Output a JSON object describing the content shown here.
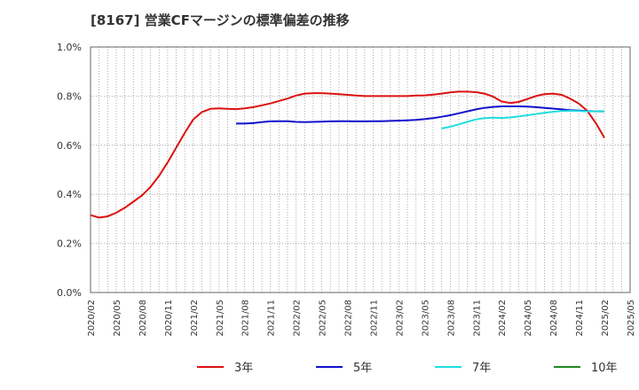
{
  "chart_data": {
    "type": "line",
    "title": "[8167]  営業CFマージンの標準偏差の推移",
    "xlabel": "",
    "ylabel": "",
    "ylim": [
      0,
      1.0
    ],
    "yticks": [
      "0.0%",
      "0.2%",
      "0.4%",
      "0.6%",
      "0.8%",
      "1.0%"
    ],
    "x_ticks": [
      "2020/02",
      "2020/05",
      "2020/08",
      "2020/11",
      "2021/02",
      "2021/05",
      "2021/08",
      "2021/11",
      "2022/02",
      "2022/05",
      "2022/08",
      "2022/11",
      "2023/02",
      "2023/05",
      "2023/08",
      "2023/11",
      "2024/02",
      "2024/05",
      "2024/08",
      "2024/11",
      "2025/02",
      "2025/05"
    ],
    "grid": true,
    "legend_position": "bottom",
    "series": [
      {
        "name": "3年",
        "color": "#dd1111",
        "points": [
          [
            "2020/02",
            0.315
          ],
          [
            "2020/03",
            0.305
          ],
          [
            "2020/04",
            0.31
          ],
          [
            "2020/05",
            0.325
          ],
          [
            "2020/06",
            0.345
          ],
          [
            "2020/07",
            0.37
          ],
          [
            "2020/08",
            0.395
          ],
          [
            "2020/09",
            0.43
          ],
          [
            "2020/10",
            0.475
          ],
          [
            "2020/11",
            0.53
          ],
          [
            "2020/12",
            0.59
          ],
          [
            "2021/01",
            0.65
          ],
          [
            "2021/02",
            0.705
          ],
          [
            "2021/03",
            0.735
          ],
          [
            "2021/04",
            0.748
          ],
          [
            "2021/05",
            0.75
          ],
          [
            "2021/06",
            0.748
          ],
          [
            "2021/07",
            0.747
          ],
          [
            "2021/08",
            0.75
          ],
          [
            "2021/09",
            0.755
          ],
          [
            "2021/10",
            0.762
          ],
          [
            "2021/11",
            0.77
          ],
          [
            "2021/12",
            0.78
          ],
          [
            "2022/01",
            0.79
          ],
          [
            "2022/02",
            0.802
          ],
          [
            "2022/03",
            0.81
          ],
          [
            "2022/04",
            0.812
          ],
          [
            "2022/05",
            0.812
          ],
          [
            "2022/06",
            0.81
          ],
          [
            "2022/07",
            0.808
          ],
          [
            "2022/08",
            0.805
          ],
          [
            "2022/09",
            0.802
          ],
          [
            "2022/10",
            0.8
          ],
          [
            "2022/11",
            0.8
          ],
          [
            "2022/12",
            0.8
          ],
          [
            "2023/01",
            0.8
          ],
          [
            "2023/02",
            0.8
          ],
          [
            "2023/03",
            0.8
          ],
          [
            "2023/04",
            0.802
          ],
          [
            "2023/05",
            0.803
          ],
          [
            "2023/06",
            0.806
          ],
          [
            "2023/07",
            0.81
          ],
          [
            "2023/08",
            0.815
          ],
          [
            "2023/09",
            0.818
          ],
          [
            "2023/10",
            0.818
          ],
          [
            "2023/11",
            0.816
          ],
          [
            "2023/12",
            0.81
          ],
          [
            "2024/01",
            0.798
          ],
          [
            "2024/02",
            0.778
          ],
          [
            "2024/03",
            0.772
          ],
          [
            "2024/04",
            0.776
          ],
          [
            "2024/05",
            0.788
          ],
          [
            "2024/06",
            0.8
          ],
          [
            "2024/07",
            0.808
          ],
          [
            "2024/08",
            0.81
          ],
          [
            "2024/09",
            0.805
          ],
          [
            "2024/10",
            0.79
          ],
          [
            "2024/11",
            0.77
          ],
          [
            "2024/12",
            0.74
          ],
          [
            "2025/01",
            0.69
          ],
          [
            "2025/02",
            0.63
          ]
        ]
      },
      {
        "name": "5年",
        "color": "#1111cc",
        "points": [
          [
            "2021/07",
            0.688
          ],
          [
            "2021/08",
            0.688
          ],
          [
            "2021/09",
            0.69
          ],
          [
            "2021/10",
            0.694
          ],
          [
            "2021/11",
            0.697
          ],
          [
            "2021/12",
            0.698
          ],
          [
            "2022/01",
            0.698
          ],
          [
            "2022/02",
            0.695
          ],
          [
            "2022/03",
            0.694
          ],
          [
            "2022/04",
            0.695
          ],
          [
            "2022/05",
            0.696
          ],
          [
            "2022/06",
            0.697
          ],
          [
            "2022/07",
            0.698
          ],
          [
            "2022/08",
            0.698
          ],
          [
            "2022/09",
            0.697
          ],
          [
            "2022/10",
            0.697
          ],
          [
            "2022/11",
            0.698
          ],
          [
            "2022/12",
            0.698
          ],
          [
            "2023/01",
            0.699
          ],
          [
            "2023/02",
            0.7
          ],
          [
            "2023/03",
            0.701
          ],
          [
            "2023/04",
            0.703
          ],
          [
            "2023/05",
            0.706
          ],
          [
            "2023/06",
            0.71
          ],
          [
            "2023/07",
            0.716
          ],
          [
            "2023/08",
            0.722
          ],
          [
            "2023/09",
            0.73
          ],
          [
            "2023/10",
            0.738
          ],
          [
            "2023/11",
            0.746
          ],
          [
            "2023/12",
            0.752
          ],
          [
            "2024/01",
            0.756
          ],
          [
            "2024/02",
            0.758
          ],
          [
            "2024/03",
            0.758
          ],
          [
            "2024/04",
            0.758
          ],
          [
            "2024/05",
            0.757
          ],
          [
            "2024/06",
            0.755
          ],
          [
            "2024/07",
            0.752
          ],
          [
            "2024/08",
            0.749
          ],
          [
            "2024/09",
            0.746
          ],
          [
            "2024/10",
            0.743
          ],
          [
            "2024/11",
            0.741
          ],
          [
            "2024/12",
            0.739
          ],
          [
            "2025/01",
            0.738
          ],
          [
            "2025/02",
            0.738
          ]
        ]
      },
      {
        "name": "7年",
        "color": "#22dddd",
        "points": [
          [
            "2023/07",
            0.668
          ],
          [
            "2023/08",
            0.675
          ],
          [
            "2023/09",
            0.685
          ],
          [
            "2023/10",
            0.695
          ],
          [
            "2023/11",
            0.705
          ],
          [
            "2023/12",
            0.71
          ],
          [
            "2024/01",
            0.712
          ],
          [
            "2024/02",
            0.711
          ],
          [
            "2024/03",
            0.713
          ],
          [
            "2024/04",
            0.717
          ],
          [
            "2024/05",
            0.722
          ],
          [
            "2024/06",
            0.727
          ],
          [
            "2024/07",
            0.732
          ],
          [
            "2024/08",
            0.736
          ],
          [
            "2024/09",
            0.739
          ],
          [
            "2024/10",
            0.74
          ],
          [
            "2024/11",
            0.739
          ],
          [
            "2024/12",
            0.738
          ],
          [
            "2025/01",
            0.738
          ],
          [
            "2025/02",
            0.738
          ]
        ]
      },
      {
        "name": "10年",
        "color": "#228822",
        "points": []
      }
    ]
  }
}
